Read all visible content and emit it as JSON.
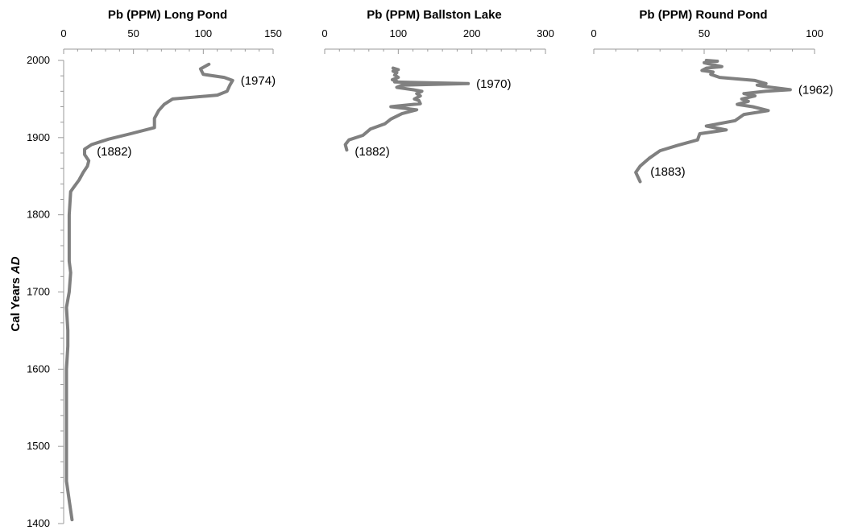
{
  "chart_data": {
    "type": "line",
    "ylabel": "Cal Years",
    "ylabel_italic": "AD",
    "ylim": [
      1400,
      2000
    ],
    "yticks": [
      2000,
      1900,
      1800,
      1700,
      1600,
      1500,
      1400
    ],
    "line_color": "#808080",
    "panels": [
      {
        "title": "Pb (PPM) Long Pond",
        "xlim": [
          0,
          150
        ],
        "xticks": [
          0,
          50,
          100,
          150
        ],
        "annotations": [
          {
            "text": "(1974)",
            "x": 121,
            "y": 1974
          },
          {
            "text": "(1882)",
            "x": 18,
            "y": 1882
          }
        ],
        "points": [
          [
            104,
            1995
          ],
          [
            98,
            1989
          ],
          [
            100,
            1982
          ],
          [
            115,
            1978
          ],
          [
            121,
            1974
          ],
          [
            119,
            1968
          ],
          [
            117,
            1960
          ],
          [
            110,
            1955
          ],
          [
            78,
            1950
          ],
          [
            72,
            1943
          ],
          [
            68,
            1935
          ],
          [
            65,
            1925
          ],
          [
            65,
            1913
          ],
          [
            48,
            1905
          ],
          [
            32,
            1898
          ],
          [
            20,
            1891
          ],
          [
            15,
            1885
          ],
          [
            15,
            1878
          ],
          [
            18,
            1870
          ],
          [
            17,
            1863
          ],
          [
            14,
            1855
          ],
          [
            11,
            1845
          ],
          [
            7,
            1835
          ],
          [
            5,
            1830
          ],
          [
            4,
            1800
          ],
          [
            4,
            1768
          ],
          [
            4,
            1740
          ],
          [
            5,
            1725
          ],
          [
            4,
            1700
          ],
          [
            2,
            1680
          ],
          [
            3,
            1650
          ],
          [
            3,
            1630
          ],
          [
            2,
            1600
          ],
          [
            2,
            1550
          ],
          [
            2,
            1500
          ],
          [
            2,
            1455
          ],
          [
            4,
            1430
          ],
          [
            6,
            1405
          ]
        ]
      },
      {
        "title": "Pb (PPM) Ballston Lake",
        "xlim": [
          0,
          300
        ],
        "xticks": [
          0,
          100,
          200,
          300
        ],
        "annotations": [
          {
            "text": "(1970)",
            "x": 195,
            "y": 1970
          },
          {
            "text": "(1882)",
            "x": 30,
            "y": 1882
          }
        ],
        "points": [
          [
            93,
            1990
          ],
          [
            100,
            1988
          ],
          [
            93,
            1986
          ],
          [
            98,
            1984
          ],
          [
            95,
            1981
          ],
          [
            100,
            1978
          ],
          [
            92,
            1975
          ],
          [
            98,
            1973
          ],
          [
            95,
            1972
          ],
          [
            195,
            1970
          ],
          [
            105,
            1968
          ],
          [
            98,
            1965
          ],
          [
            120,
            1962
          ],
          [
            132,
            1960
          ],
          [
            125,
            1957
          ],
          [
            130,
            1954
          ],
          [
            122,
            1950
          ],
          [
            128,
            1948
          ],
          [
            130,
            1944
          ],
          [
            100,
            1941
          ],
          [
            90,
            1940
          ],
          [
            125,
            1936
          ],
          [
            105,
            1931
          ],
          [
            90,
            1924
          ],
          [
            82,
            1918
          ],
          [
            62,
            1911
          ],
          [
            52,
            1903
          ],
          [
            33,
            1897
          ],
          [
            28,
            1891
          ],
          [
            30,
            1884
          ]
        ]
      },
      {
        "title": "Pb (PPM) Round Pond",
        "xlim": [
          0,
          100
        ],
        "xticks": [
          0,
          50,
          100
        ],
        "annotations": [
          {
            "text": "(1962)",
            "x": 89,
            "y": 1962
          },
          {
            "text": "(1883)",
            "x": 22,
            "y": 1856
          }
        ],
        "points": [
          [
            51,
            2000
          ],
          [
            56,
            1999
          ],
          [
            50,
            1997
          ],
          [
            53,
            1995
          ],
          [
            58,
            1992
          ],
          [
            51,
            1990
          ],
          [
            49,
            1987
          ],
          [
            54,
            1985
          ],
          [
            53,
            1982
          ],
          [
            57,
            1978
          ],
          [
            73,
            1974
          ],
          [
            78,
            1970
          ],
          [
            74,
            1968
          ],
          [
            78,
            1966
          ],
          [
            89,
            1962
          ],
          [
            78,
            1960
          ],
          [
            68,
            1957
          ],
          [
            73,
            1954
          ],
          [
            67,
            1950
          ],
          [
            70,
            1947
          ],
          [
            65,
            1943
          ],
          [
            72,
            1940
          ],
          [
            79,
            1935
          ],
          [
            68,
            1930
          ],
          [
            64,
            1922
          ],
          [
            51,
            1915
          ],
          [
            60,
            1910
          ],
          [
            48,
            1905
          ],
          [
            47,
            1897
          ],
          [
            38,
            1890
          ],
          [
            30,
            1883
          ],
          [
            25,
            1873
          ],
          [
            21,
            1863
          ],
          [
            19,
            1855
          ],
          [
            21,
            1843
          ]
        ]
      }
    ]
  }
}
